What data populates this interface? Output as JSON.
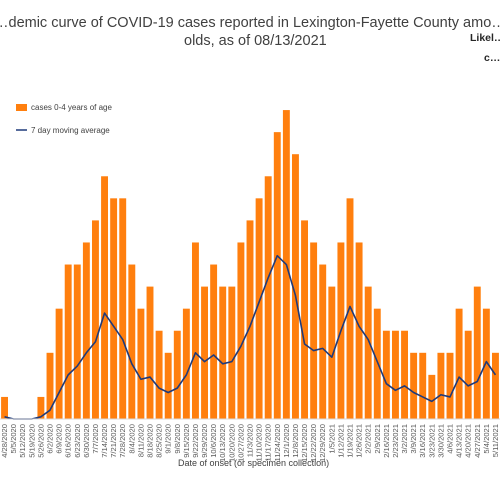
{
  "chart_data": {
    "type": "bar",
    "title": "…demic curve of COVID-19 cases reported in Lexington-Fayette County amo…",
    "title_line2": "olds, as of 08/13/2021",
    "side_note_line1": "Likel…",
    "side_note_line2": "c…",
    "xlabel": "Date of onset (or specimen collection)",
    "ylabel": "",
    "ylim": [
      0,
      15
    ],
    "grid": false,
    "legend_position": "top-left",
    "series": [
      {
        "name": "cases 0-4 years of age",
        "kind": "bar",
        "color": "#ff7f0e"
      },
      {
        "name": "7 day moving average",
        "kind": "line",
        "color": "#1f3a7a"
      }
    ],
    "x_tick_labels": [
      "4/28/2020",
      "5/5/2020",
      "5/12/2020",
      "5/19/2020",
      "5/26/2020",
      "6/2/2020",
      "6/9/2020",
      "6/16/2020",
      "6/23/2020",
      "6/30/2020",
      "7/7/2020",
      "7/14/2020",
      "7/21/2020",
      "7/28/2020",
      "8/4/2020",
      "8/11/2020",
      "8/18/2020",
      "8/25/2020",
      "9/1/2020",
      "9/8/2020",
      "9/15/2020",
      "9/22/2020",
      "9/29/2020",
      "10/6/2020",
      "10/13/2020",
      "10/20/2020",
      "10/27/2020",
      "11/3/2020",
      "11/10/2020",
      "11/17/2020",
      "11/24/2020",
      "12/1/2020",
      "12/8/2020",
      "12/15/2020",
      "12/22/2020",
      "12/29/2020",
      "1/5/2021",
      "1/12/2021",
      "1/19/2021",
      "1/26/2021",
      "2/2/2021",
      "2/9/2021",
      "2/16/2021",
      "2/23/2021",
      "3/2/2021",
      "3/9/2021",
      "3/16/2021",
      "3/23/2021",
      "3/30/2021",
      "4/6/2021",
      "4/13/2021",
      "4/20/2021",
      "4/27/2021",
      "5/4/2021",
      "5/11/2021"
    ],
    "weekly_peak_cases": [
      1,
      0,
      0,
      0,
      1,
      3,
      5,
      7,
      7,
      8,
      9,
      11,
      10,
      10,
      7,
      5,
      6,
      4,
      3,
      4,
      5,
      8,
      6,
      7,
      6,
      6,
      8,
      9,
      10,
      11,
      13,
      14,
      12,
      9,
      8,
      7,
      6,
      8,
      10,
      8,
      6,
      5,
      4,
      4,
      4,
      3,
      3,
      2,
      3,
      3,
      5,
      4,
      6,
      5,
      3
    ],
    "weekly_moving_average": [
      0.1,
      0,
      0,
      0,
      0.1,
      0.4,
      1.2,
      2.0,
      2.4,
      3.0,
      3.5,
      4.8,
      4.2,
      3.6,
      2.5,
      1.8,
      1.9,
      1.4,
      1.2,
      1.4,
      2.0,
      3.0,
      2.6,
      2.9,
      2.5,
      2.6,
      3.3,
      4.2,
      5.3,
      6.4,
      7.4,
      7.0,
      5.6,
      3.4,
      3.1,
      3.2,
      2.8,
      4.0,
      5.1,
      4.2,
      3.6,
      2.6,
      1.6,
      1.3,
      1.5,
      1.2,
      1.0,
      0.8,
      1.1,
      1.0,
      1.9,
      1.5,
      1.7,
      2.6,
      2.0
    ]
  }
}
